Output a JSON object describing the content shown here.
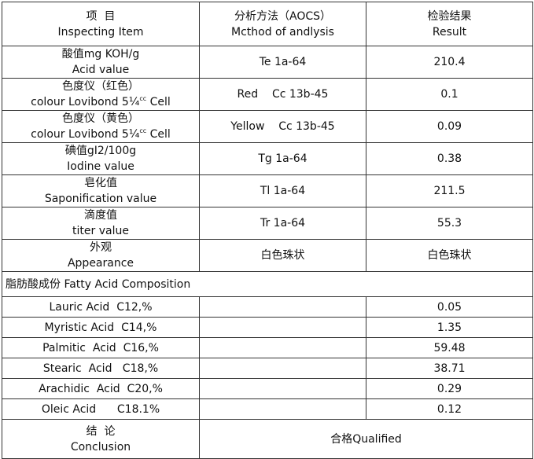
{
  "table": {
    "header": [
      [
        "项  目",
        "Inspecting Item"
      ],
      [
        "分析方法（AOCS）",
        "Mcthod of andlysis"
      ],
      [
        "检验结果",
        "Result"
      ]
    ],
    "rows": [
      {
        "item": [
          "酸值mg KOH/g",
          "Acid value"
        ],
        "method": "Te 1a-64",
        "result": "210.4"
      },
      {
        "item": [
          "色度仪（红色）",
          "colour Lovibond 5¼"
        ],
        "sup": "cc",
        "tail": " Cell",
        "method": "Red    Cc 13b-45",
        "result": "0.1"
      },
      {
        "item": [
          "色度仪（黄色）",
          "colour Lovibond 5¼"
        ],
        "sup": "cc",
        "tail": " Cell",
        "method": "Yellow    Cc 13b-45",
        "result": "0.09"
      },
      {
        "item": [
          "碘值gI2/100g",
          "Iodine value"
        ],
        "method": "Tg 1a-64",
        "result": "0.38"
      },
      {
        "item": [
          "皂化值",
          "Saponification value"
        ],
        "method": "Tl 1a-64",
        "result": "211.5"
      },
      {
        "item": [
          "滴度值",
          "titer value"
        ],
        "method": "Tr 1a-64",
        "result": "55.3"
      },
      {
        "item": [
          "外观",
          "Appearance"
        ],
        "method": "白色珠状",
        "result": "白色珠状"
      }
    ],
    "section": "脂肪酸成份 Fatty Acid Composition",
    "fatty_acids": [
      [
        "Lauric Acid  C12,%",
        "0.05"
      ],
      [
        "Myristic Acid  C14,%",
        "1.35"
      ],
      [
        "Palmitic  Acid  C16,%",
        "59.48"
      ],
      [
        "Stearic  Acid   C18,%",
        "38.71"
      ],
      [
        "Arachidic  Acid  C20,%",
        "0.29"
      ],
      [
        "Oleic Acid      C18.1%",
        "0.12"
      ]
    ],
    "conclusion": {
      "label": [
        "结  论",
        "Conclusion"
      ],
      "value": "合格Qualified"
    }
  }
}
